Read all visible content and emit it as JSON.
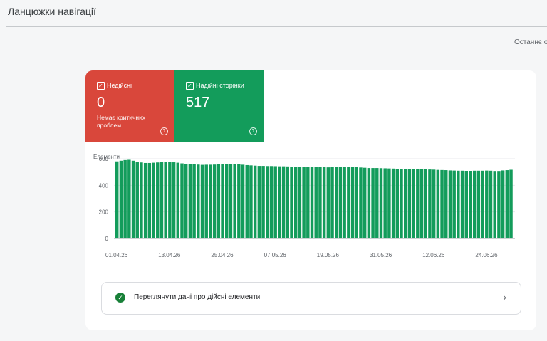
{
  "page": {
    "title": "Ланцюжки навігації",
    "last_updated": "Останнє о"
  },
  "tiles": {
    "invalid": {
      "label": "Недійсні",
      "count": "0",
      "description": "Немає критичних проблем",
      "color": "#d9473b",
      "icons": [
        "checkbox-icon",
        "help-icon"
      ]
    },
    "valid": {
      "label": "Надійні сторінки",
      "count": "517",
      "color": "#139c5b",
      "icons": [
        "checkbox-icon",
        "help-icon"
      ]
    }
  },
  "chart_data": {
    "type": "bar",
    "ylabel": "Елементи",
    "ylim": [
      0,
      600
    ],
    "yticks": [
      0,
      200,
      400,
      600
    ],
    "xtick_labels": [
      "01.04.26",
      "13.04.26",
      "25.04.26",
      "07.05.26",
      "19.05.26",
      "31.05.26",
      "12.06.26",
      "24.06.26"
    ],
    "bar_color": "#139c5b",
    "grid": true,
    "series": [
      {
        "values": [
          580,
          585,
          590,
          592,
          585,
          578,
          572,
          568,
          568,
          570,
          572,
          575,
          575,
          575,
          573,
          570,
          565,
          562,
          560,
          558,
          556,
          554,
          555,
          555,
          556,
          558,
          558,
          558,
          558,
          560,
          558,
          555,
          552,
          550,
          548,
          546,
          546,
          545,
          545,
          544,
          543,
          543,
          542,
          541,
          540,
          540,
          539,
          538,
          538,
          538,
          537,
          536,
          535,
          536,
          538,
          538,
          538,
          538,
          537,
          536,
          534,
          532,
          530,
          530,
          530,
          529,
          528,
          527,
          526,
          525,
          525,
          524,
          524,
          523,
          522,
          521,
          520,
          519,
          518,
          516,
          515,
          514,
          512,
          511,
          510,
          510,
          509,
          509,
          510,
          510,
          510,
          511,
          510,
          508,
          508,
          512,
          514,
          517
        ]
      }
    ]
  },
  "details_link": {
    "label": "Переглянути дані про дійсні елементи",
    "icons": [
      "check-circle-icon",
      "chevron-right-icon"
    ]
  }
}
